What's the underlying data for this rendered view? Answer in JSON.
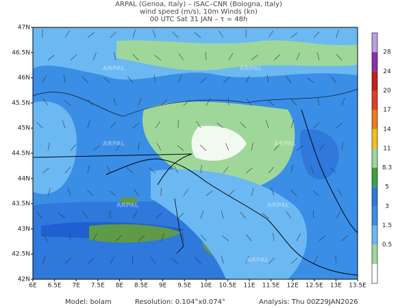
{
  "header": {
    "lines": [
      "ARPAL (Genoa, Italy)  –  ISAC–CNR (Bologna, Italy)",
      "wind speed (m/s), 10m Winds (kn)",
      "00 UTC Sat 31 JAN  –  τ = 48h"
    ]
  },
  "map": {
    "lon_labels": [
      "6E",
      "6.5E",
      "7E",
      "7.5E",
      "8E",
      "8.5E",
      "9E",
      "9.5E",
      "10E",
      "10.5E",
      "11E",
      "11.5E",
      "12E",
      "12.5E",
      "13E",
      "13.5E"
    ],
    "lat_labels": [
      "47N",
      "46.5N",
      "46N",
      "45.5N",
      "45N",
      "44.5N",
      "44N",
      "43.5N",
      "43N",
      "42.5N",
      "42N"
    ],
    "watermark": "ARPAL"
  },
  "colorbar": {
    "labels": [
      "28",
      "24",
      "20",
      "17",
      "14",
      "11",
      "8.3",
      "5",
      "3",
      "1.5",
      "0.5"
    ]
  },
  "footer": {
    "model": "Model: bolam",
    "resolution": "Resolution: 0.104°x0.074°",
    "analysis": "Analysis: Thu 00Z29JAN2026"
  }
}
